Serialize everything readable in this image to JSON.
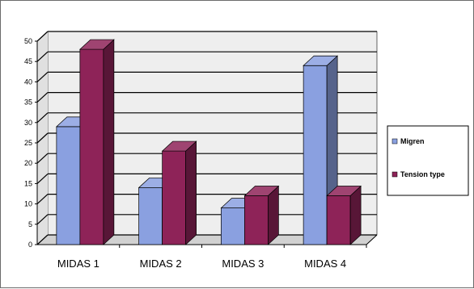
{
  "chart_data": {
    "type": "bar",
    "categories": [
      "MIDAS 1",
      "MIDAS 2",
      "MIDAS 3",
      "MIDAS 4"
    ],
    "series": [
      {
        "name": "Migren",
        "values": [
          29,
          14,
          9,
          44
        ]
      },
      {
        "name": "Tension type",
        "values": [
          48,
          23,
          12,
          12
        ]
      }
    ],
    "y_ticks": [
      "0",
      "5",
      "10",
      "15",
      "20",
      "25",
      "30",
      "35",
      "40",
      "45",
      "50"
    ],
    "ylim": [
      0,
      50
    ],
    "grid": true,
    "three_d": true,
    "legend_position": "right",
    "colors": {
      "Migren": "#8aa0e0",
      "Tension type": "#8e2358",
      "plot_area": "#eeeeee"
    }
  }
}
